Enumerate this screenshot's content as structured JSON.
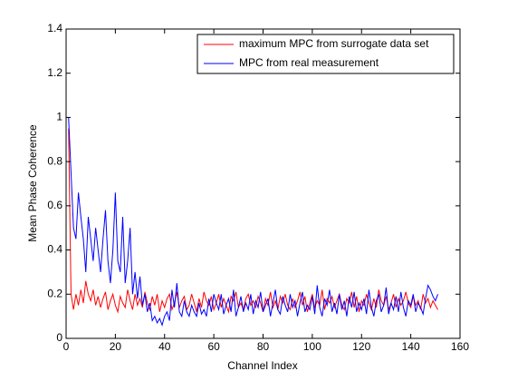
{
  "chart_data": {
    "type": "line",
    "xlabel": "Channel Index",
    "ylabel": "Mean Phase Coherence",
    "xlim": [
      0,
      160
    ],
    "ylim": [
      0,
      1.4
    ],
    "xticks": [
      0,
      20,
      40,
      60,
      80,
      100,
      120,
      140,
      160
    ],
    "yticks": [
      0,
      0.2,
      0.4,
      0.6,
      0.8,
      1,
      1.2,
      1.4
    ],
    "grid": false,
    "legend": "top-right",
    "x": [
      1,
      2,
      3,
      4,
      5,
      6,
      7,
      8,
      9,
      10,
      11,
      12,
      13,
      14,
      15,
      16,
      17,
      18,
      19,
      20,
      21,
      22,
      23,
      24,
      25,
      26,
      27,
      28,
      29,
      30,
      31,
      32,
      33,
      34,
      35,
      36,
      37,
      38,
      39,
      40,
      41,
      42,
      43,
      44,
      45,
      46,
      47,
      48,
      49,
      50,
      51,
      52,
      53,
      54,
      55,
      56,
      57,
      58,
      59,
      60,
      61,
      62,
      63,
      64,
      65,
      66,
      67,
      68,
      69,
      70,
      71,
      72,
      73,
      74,
      75,
      76,
      77,
      78,
      79,
      80,
      81,
      82,
      83,
      84,
      85,
      86,
      87,
      88,
      89,
      90,
      91,
      92,
      93,
      94,
      95,
      96,
      97,
      98,
      99,
      100,
      101,
      102,
      103,
      104,
      105,
      106,
      107,
      108,
      109,
      110,
      111,
      112,
      113,
      114,
      115,
      116,
      117,
      118,
      119,
      120,
      121,
      122,
      123,
      124,
      125,
      126,
      127,
      128,
      129,
      130,
      131,
      132,
      133,
      134,
      135,
      136,
      137,
      138,
      139,
      140,
      141,
      142,
      143,
      144,
      145,
      146,
      147,
      148,
      149,
      150,
      151
    ],
    "series": [
      {
        "name": "maximum MPC from surrogate data set",
        "color": "#ff0000",
        "values": [
          0.95,
          0.2,
          0.13,
          0.2,
          0.15,
          0.22,
          0.16,
          0.26,
          0.2,
          0.17,
          0.22,
          0.15,
          0.19,
          0.14,
          0.18,
          0.21,
          0.13,
          0.17,
          0.2,
          0.15,
          0.12,
          0.19,
          0.16,
          0.14,
          0.22,
          0.17,
          0.13,
          0.2,
          0.15,
          0.18,
          0.14,
          0.21,
          0.16,
          0.13,
          0.19,
          0.15,
          0.2,
          0.12,
          0.17,
          0.14,
          0.18,
          0.2,
          0.13,
          0.16,
          0.21,
          0.14,
          0.17,
          0.19,
          0.13,
          0.15,
          0.2,
          0.16,
          0.12,
          0.18,
          0.14,
          0.21,
          0.17,
          0.15,
          0.19,
          0.13,
          0.16,
          0.2,
          0.14,
          0.18,
          0.15,
          0.12,
          0.19,
          0.17,
          0.21,
          0.14,
          0.16,
          0.13,
          0.18,
          0.2,
          0.15,
          0.17,
          0.14,
          0.19,
          0.16,
          0.12,
          0.18,
          0.15,
          0.21,
          0.14,
          0.17,
          0.13,
          0.19,
          0.16,
          0.2,
          0.15,
          0.13,
          0.18,
          0.14,
          0.17,
          0.21,
          0.15,
          0.19,
          0.12,
          0.16,
          0.2,
          0.14,
          0.17,
          0.15,
          0.22,
          0.13,
          0.18,
          0.16,
          0.19,
          0.14,
          0.17,
          0.2,
          0.15,
          0.13,
          0.18,
          0.16,
          0.21,
          0.14,
          0.19,
          0.12,
          0.17,
          0.15,
          0.2,
          0.16,
          0.13,
          0.18,
          0.14,
          0.22,
          0.17,
          0.15,
          0.19,
          0.13,
          0.16,
          0.2,
          0.14,
          0.18,
          0.15,
          0.17,
          0.21,
          0.16,
          0.14,
          0.19,
          0.15,
          0.17,
          0.13,
          0.2,
          0.16,
          0.18,
          0.14,
          0.17,
          0.15,
          0.13
        ]
      },
      {
        "name": "MPC from real measurement",
        "color": "#0000ff",
        "values": [
          1.0,
          0.75,
          0.5,
          0.45,
          0.66,
          0.55,
          0.45,
          0.3,
          0.55,
          0.45,
          0.35,
          0.5,
          0.4,
          0.3,
          0.45,
          0.58,
          0.35,
          0.25,
          0.4,
          0.66,
          0.35,
          0.3,
          0.55,
          0.25,
          0.35,
          0.5,
          0.2,
          0.3,
          0.18,
          0.28,
          0.15,
          0.2,
          0.12,
          0.16,
          0.08,
          0.1,
          0.07,
          0.09,
          0.06,
          0.1,
          0.12,
          0.08,
          0.22,
          0.14,
          0.25,
          0.12,
          0.1,
          0.17,
          0.12,
          0.1,
          0.15,
          0.12,
          0.1,
          0.16,
          0.11,
          0.13,
          0.1,
          0.18,
          0.12,
          0.2,
          0.16,
          0.13,
          0.2,
          0.11,
          0.15,
          0.18,
          0.12,
          0.22,
          0.1,
          0.14,
          0.19,
          0.12,
          0.16,
          0.13,
          0.2,
          0.11,
          0.17,
          0.14,
          0.21,
          0.12,
          0.15,
          0.18,
          0.1,
          0.16,
          0.22,
          0.13,
          0.11,
          0.19,
          0.15,
          0.12,
          0.2,
          0.14,
          0.17,
          0.1,
          0.16,
          0.21,
          0.12,
          0.15,
          0.13,
          0.19,
          0.11,
          0.24,
          0.14,
          0.1,
          0.18,
          0.15,
          0.22,
          0.12,
          0.16,
          0.11,
          0.2,
          0.13,
          0.17,
          0.1,
          0.19,
          0.14,
          0.21,
          0.12,
          0.16,
          0.13,
          0.18,
          0.11,
          0.22,
          0.14,
          0.1,
          0.17,
          0.2,
          0.12,
          0.15,
          0.23,
          0.11,
          0.16,
          0.13,
          0.19,
          0.12,
          0.21,
          0.14,
          0.1,
          0.17,
          0.15,
          0.2,
          0.12,
          0.16,
          0.14,
          0.11,
          0.18,
          0.24,
          0.22,
          0.19,
          0.17,
          0.2
        ]
      }
    ]
  }
}
